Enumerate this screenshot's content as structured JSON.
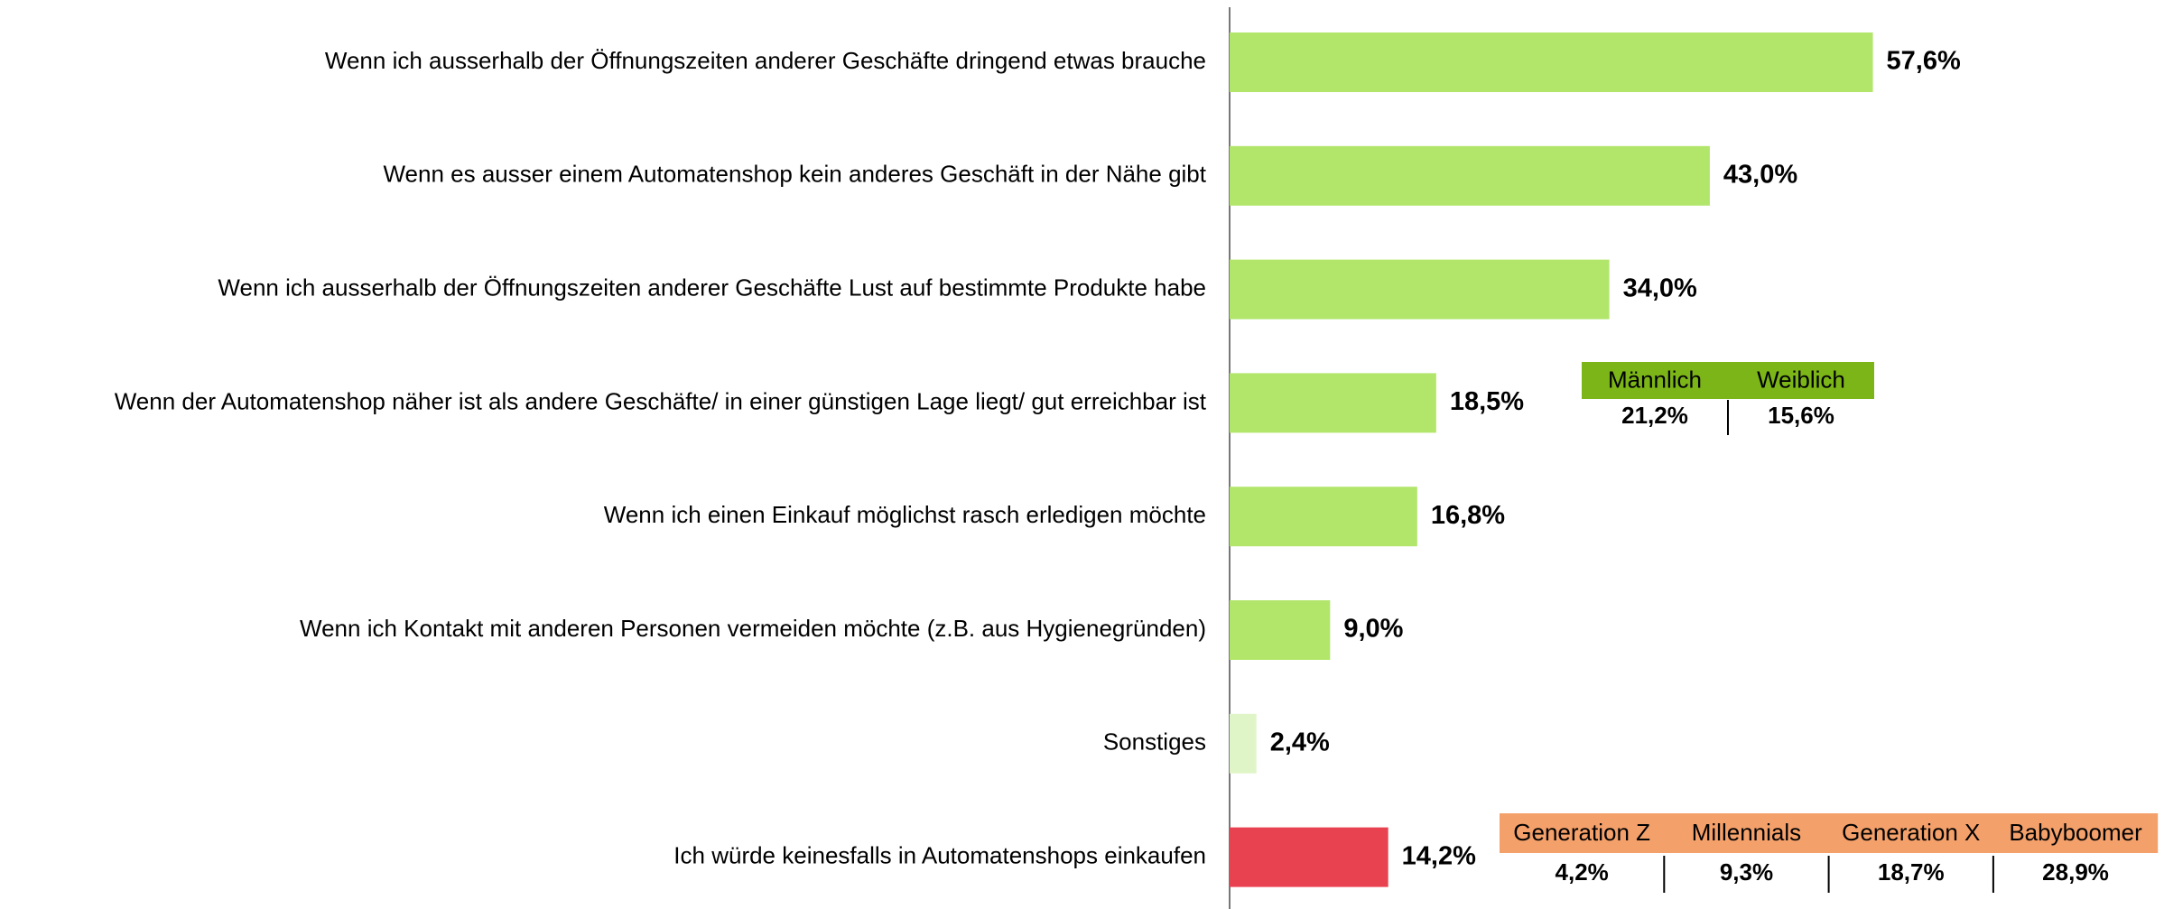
{
  "chart_data": {
    "type": "hbar",
    "categories": [
      "Wenn ich ausserhalb der Öffnungszeiten anderer Geschäfte dringend etwas brauche",
      "Wenn es ausser einem Automatenshop kein anderes Geschäft in der Nähe gibt",
      "Wenn ich ausserhalb der Öffnungszeiten anderer Geschäfte Lust auf bestimmte Produkte habe",
      "Wenn der Automatenshop näher ist als andere Geschäfte/ in einer günstigen Lage liegt/ gut erreichbar ist",
      "Wenn ich einen Einkauf möglichst rasch erledigen möchte",
      "Wenn ich Kontakt mit anderen Personen vermeiden möchte (z.B. aus Hygienegründen)",
      "Sonstiges",
      "Ich würde keinesfalls in Automatenshops einkaufen"
    ],
    "values": [
      57.6,
      43.0,
      34.0,
      18.5,
      16.8,
      9.0,
      2.4,
      14.2
    ],
    "value_labels": [
      "57,6%",
      "43,0%",
      "34,0%",
      "18,5%",
      "16,8%",
      "9,0%",
      "2,4%",
      "14,2%"
    ],
    "colors": [
      "#b2e66b",
      "#b2e66b",
      "#b2e66b",
      "#b2e66b",
      "#b2e66b",
      "#b2e66b",
      "#dff5c8",
      "#e84150"
    ],
    "breakdowns": [
      {
        "header_color": "#7cb518",
        "columns": [
          "Männlich",
          "Weiblich"
        ],
        "cells": [
          "21,2%",
          "15,6%"
        ]
      },
      {
        "header_color": "#f4a06a",
        "columns": [
          "Generation Z",
          "Millennials",
          "Generation X",
          "Babyboomer"
        ],
        "cells": [
          "4,2%",
          "9,3%",
          "18,7%",
          "28,9%"
        ]
      }
    ]
  }
}
